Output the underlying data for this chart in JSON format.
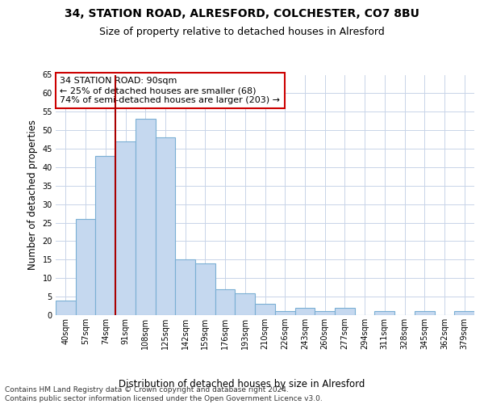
{
  "title1": "34, STATION ROAD, ALRESFORD, COLCHESTER, CO7 8BU",
  "title2": "Size of property relative to detached houses in Alresford",
  "xlabel": "Distribution of detached houses by size in Alresford",
  "ylabel": "Number of detached properties",
  "categories": [
    "40sqm",
    "57sqm",
    "74sqm",
    "91sqm",
    "108sqm",
    "125sqm",
    "142sqm",
    "159sqm",
    "176sqm",
    "193sqm",
    "210sqm",
    "226sqm",
    "243sqm",
    "260sqm",
    "277sqm",
    "294sqm",
    "311sqm",
    "328sqm",
    "345sqm",
    "362sqm",
    "379sqm"
  ],
  "values": [
    4,
    26,
    43,
    47,
    53,
    48,
    15,
    14,
    7,
    6,
    3,
    1,
    2,
    1,
    2,
    0,
    1,
    0,
    1,
    0,
    1
  ],
  "bar_color": "#c5d8ef",
  "bar_edge_color": "#7aafd4",
  "vline_color": "#aa0000",
  "annotation_text": "34 STATION ROAD: 90sqm\n← 25% of detached houses are smaller (68)\n74% of semi-detached houses are larger (203) →",
  "annotation_box_color": "#ffffff",
  "annotation_box_edge": "#cc0000",
  "ylim": [
    0,
    65
  ],
  "yticks": [
    0,
    5,
    10,
    15,
    20,
    25,
    30,
    35,
    40,
    45,
    50,
    55,
    60,
    65
  ],
  "background_color": "#ffffff",
  "grid_color": "#c8d4e8",
  "footer_text": "Contains HM Land Registry data © Crown copyright and database right 2024.\nContains public sector information licensed under the Open Government Licence v3.0.",
  "title1_fontsize": 10,
  "title2_fontsize": 9,
  "xlabel_fontsize": 8.5,
  "ylabel_fontsize": 8.5,
  "tick_fontsize": 7,
  "footer_fontsize": 6.5,
  "annot_fontsize": 8
}
